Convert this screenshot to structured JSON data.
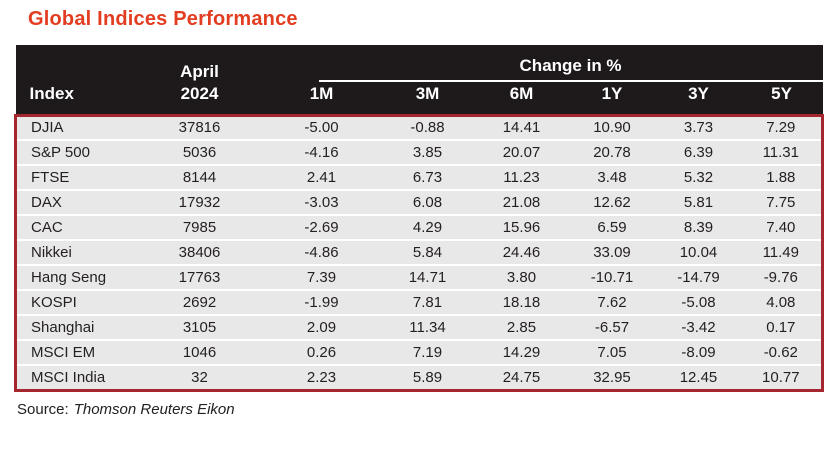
{
  "title": "Global Indices Performance",
  "source": {
    "label": "Source:",
    "name": "Thomson Reuters Eikon"
  },
  "chart_data": {
    "type": "table",
    "title": "Global Indices Performance",
    "group_header": "Change in %",
    "columns": [
      "Index",
      "April 2024",
      "1M",
      "3M",
      "6M",
      "1Y",
      "3Y",
      "5Y"
    ],
    "header": {
      "index": "Index",
      "april_line1": "April",
      "april_line2": "2024",
      "periods": [
        "1M",
        "3M",
        "6M",
        "1Y",
        "3Y",
        "5Y"
      ]
    },
    "rows": [
      {
        "index": "DJIA",
        "april_2024": "37816",
        "changes": [
          "-5.00",
          "-0.88",
          "14.41",
          "10.90",
          "3.73",
          "7.29"
        ]
      },
      {
        "index": "S&P 500",
        "april_2024": "5036",
        "changes": [
          "-4.16",
          "3.85",
          "20.07",
          "20.78",
          "6.39",
          "11.31"
        ]
      },
      {
        "index": "FTSE",
        "april_2024": "8144",
        "changes": [
          "2.41",
          "6.73",
          "11.23",
          "3.48",
          "5.32",
          "1.88"
        ]
      },
      {
        "index": "DAX",
        "april_2024": "17932",
        "changes": [
          "-3.03",
          "6.08",
          "21.08",
          "12.62",
          "5.81",
          "7.75"
        ]
      },
      {
        "index": "CAC",
        "april_2024": "7985",
        "changes": [
          "-2.69",
          "4.29",
          "15.96",
          "6.59",
          "8.39",
          "7.40"
        ]
      },
      {
        "index": "Nikkei",
        "april_2024": "38406",
        "changes": [
          "-4.86",
          "5.84",
          "24.46",
          "33.09",
          "10.04",
          "11.49"
        ]
      },
      {
        "index": "Hang Seng",
        "april_2024": "17763",
        "changes": [
          "7.39",
          "14.71",
          "3.80",
          "-10.71",
          "-14.79",
          "-9.76"
        ]
      },
      {
        "index": "KOSPI",
        "april_2024": "2692",
        "changes": [
          "-1.99",
          "7.81",
          "18.18",
          "7.62",
          "-5.08",
          "4.08"
        ]
      },
      {
        "index": "Shanghai",
        "april_2024": "3105",
        "changes": [
          "2.09",
          "11.34",
          "2.85",
          "-6.57",
          "-3.42",
          "0.17"
        ]
      },
      {
        "index": "MSCI EM",
        "april_2024": "1046",
        "changes": [
          "0.26",
          "7.19",
          "14.29",
          "7.05",
          "-8.09",
          "-0.62"
        ]
      },
      {
        "index": "MSCI India",
        "april_2024": "32",
        "changes": [
          "2.23",
          "5.89",
          "24.75",
          "32.95",
          "12.45",
          "10.77"
        ]
      }
    ]
  },
  "colors": {
    "title_text": "#e33d21",
    "header_bg": "#1e1a1b",
    "header_text": "#ffffff",
    "row_bg": "#e9e8e8",
    "row_separator": "#ffffff",
    "table_border": "#a5262e",
    "body_text": "#231f20"
  }
}
